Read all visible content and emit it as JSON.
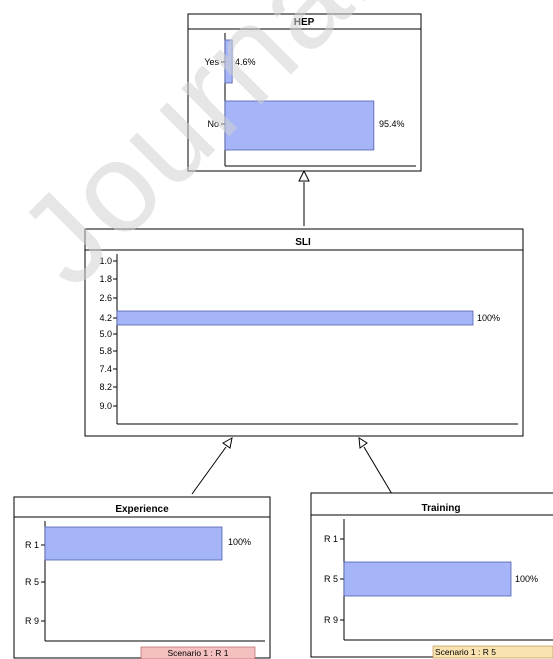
{
  "colors": {
    "bar_fill": "#a5b5f8",
    "bar_stroke": "#4f5fb0",
    "node_border": "#000000",
    "scenario_experience_bg": "#f5c0c0",
    "scenario_training_bg": "#f9e3b0",
    "watermark": "#d2d2d2"
  },
  "watermark_text": "Journal Pre-proof",
  "nodes": {
    "hep": {
      "title": "HEP",
      "states": [
        "Yes",
        "No"
      ],
      "probabilities": [
        4.6,
        95.4
      ],
      "value_labels": [
        "4.6%",
        "95.4%"
      ]
    },
    "sli": {
      "title": "SLI",
      "states": [
        "1.0",
        "1.8",
        "2.6",
        "4.2",
        "5.0",
        "5.8",
        "7.4",
        "8.2",
        "9.0"
      ],
      "probabilities": [
        0,
        0,
        0,
        100,
        0,
        0,
        0,
        0,
        0
      ],
      "value_label": "100%"
    },
    "experience": {
      "title": "Experience",
      "states": [
        "R 1",
        "R 5",
        "R 9"
      ],
      "probabilities": [
        100,
        0,
        0
      ],
      "value_label": "100%",
      "scenario": "Scenario 1 : R 1"
    },
    "training": {
      "title": "Training",
      "states": [
        "R 1",
        "R 5",
        "R 9"
      ],
      "probabilities": [
        0,
        100,
        0
      ],
      "value_label": "100%",
      "scenario": "Scenario 1 : R 5"
    }
  },
  "edges": [
    {
      "from": "sli",
      "to": "hep"
    },
    {
      "from": "experience",
      "to": "sli"
    },
    {
      "from": "training",
      "to": "sli"
    }
  ]
}
